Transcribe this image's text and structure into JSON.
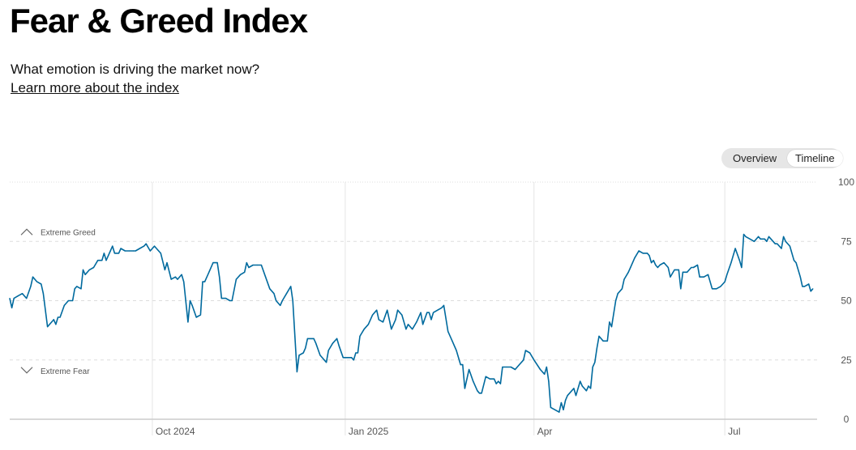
{
  "header": {
    "title": "Fear & Greed Index",
    "subtitle": "What emotion is driving the market now?",
    "learn_more": "Learn more about the index"
  },
  "toggle": {
    "overview_label": "Overview",
    "timeline_label": "Timeline",
    "selected": "Timeline"
  },
  "colors": {
    "line": "#006a9e",
    "grid": "#dddddd",
    "axis": "#cccccc"
  },
  "chart_data": {
    "type": "line",
    "title": "",
    "xlabel": "",
    "ylabel": "",
    "ylim": [
      0,
      100
    ],
    "yticks": [
      "0",
      "25",
      "50",
      "75",
      "100"
    ],
    "grid": true,
    "zone_labels": {
      "greed": "Extreme Greed",
      "fear": "Extreme Fear"
    },
    "x_tick_labels": [
      {
        "label": "Oct 2024",
        "date": "2024-10-01"
      },
      {
        "label": "Jan 2025",
        "date": "2025-01-01"
      },
      {
        "label": "Apr",
        "date": "2025-04-01"
      },
      {
        "label": "Jul",
        "date": "2025-07-01"
      }
    ],
    "xlim": [
      "2024-07-25",
      "2025-08-14"
    ],
    "series": [
      {
        "values": [
          [
            "2024-07-25",
            51
          ],
          [
            "2024-07-26",
            47
          ],
          [
            "2024-07-27",
            51
          ],
          [
            "2024-07-29",
            52
          ],
          [
            "2024-07-31",
            53
          ],
          [
            "2024-08-02",
            51
          ],
          [
            "2024-08-04",
            56
          ],
          [
            "2024-08-05",
            60
          ],
          [
            "2024-08-07",
            58
          ],
          [
            "2024-08-09",
            57
          ],
          [
            "2024-08-10",
            53
          ],
          [
            "2024-08-12",
            39
          ],
          [
            "2024-08-14",
            41
          ],
          [
            "2024-08-15",
            42
          ],
          [
            "2024-08-16",
            40
          ],
          [
            "2024-08-17",
            43
          ],
          [
            "2024-08-18",
            43
          ],
          [
            "2024-08-20",
            48
          ],
          [
            "2024-08-22",
            50
          ],
          [
            "2024-08-24",
            50
          ],
          [
            "2024-08-25",
            55
          ],
          [
            "2024-08-26",
            56
          ],
          [
            "2024-08-28",
            55
          ],
          [
            "2024-08-29",
            63
          ],
          [
            "2024-08-30",
            61
          ],
          [
            "2024-09-01",
            63
          ],
          [
            "2024-09-03",
            64
          ],
          [
            "2024-09-05",
            67
          ],
          [
            "2024-09-07",
            67
          ],
          [
            "2024-09-08",
            70
          ],
          [
            "2024-09-09",
            67
          ],
          [
            "2024-09-11",
            71
          ],
          [
            "2024-09-12",
            73
          ],
          [
            "2024-09-13",
            70
          ],
          [
            "2024-09-15",
            70
          ],
          [
            "2024-09-16",
            72
          ],
          [
            "2024-09-18",
            71
          ],
          [
            "2024-09-20",
            71
          ],
          [
            "2024-09-22",
            71
          ],
          [
            "2024-09-23",
            71
          ],
          [
            "2024-09-25",
            72
          ],
          [
            "2024-09-27",
            73
          ],
          [
            "2024-09-28",
            74
          ],
          [
            "2024-09-30",
            71
          ],
          [
            "2024-10-02",
            73
          ],
          [
            "2024-10-04",
            71
          ],
          [
            "2024-10-05",
            70
          ],
          [
            "2024-10-07",
            63
          ],
          [
            "2024-10-08",
            66
          ],
          [
            "2024-10-10",
            59
          ],
          [
            "2024-10-12",
            60
          ],
          [
            "2024-10-13",
            59
          ],
          [
            "2024-10-15",
            61
          ],
          [
            "2024-10-16",
            58
          ],
          [
            "2024-10-18",
            41
          ],
          [
            "2024-10-19",
            50
          ],
          [
            "2024-10-20",
            48
          ],
          [
            "2024-10-22",
            43
          ],
          [
            "2024-10-24",
            44
          ],
          [
            "2024-10-25",
            58
          ],
          [
            "2024-10-26",
            58
          ],
          [
            "2024-10-28",
            62
          ],
          [
            "2024-10-30",
            66
          ],
          [
            "2024-11-01",
            66
          ],
          [
            "2024-11-02",
            60
          ],
          [
            "2024-11-03",
            51
          ],
          [
            "2024-11-05",
            51
          ],
          [
            "2024-11-07",
            50
          ],
          [
            "2024-11-08",
            50
          ],
          [
            "2024-11-10",
            59
          ],
          [
            "2024-11-12",
            61
          ],
          [
            "2024-11-14",
            62
          ],
          [
            "2024-11-15",
            66
          ],
          [
            "2024-11-16",
            64
          ],
          [
            "2024-11-18",
            65
          ],
          [
            "2024-11-20",
            65
          ],
          [
            "2024-11-22",
            65
          ],
          [
            "2024-11-24",
            60
          ],
          [
            "2024-11-26",
            55
          ],
          [
            "2024-11-28",
            53
          ],
          [
            "2024-11-29",
            50
          ],
          [
            "2024-12-01",
            48
          ],
          [
            "2024-12-02",
            50
          ],
          [
            "2024-12-04",
            53
          ],
          [
            "2024-12-06",
            56
          ],
          [
            "2024-12-07",
            50
          ],
          [
            "2024-12-09",
            20
          ],
          [
            "2024-12-10",
            27
          ],
          [
            "2024-12-12",
            28
          ],
          [
            "2024-12-13",
            30
          ],
          [
            "2024-12-14",
            34
          ],
          [
            "2024-12-17",
            34
          ],
          [
            "2024-12-18",
            32
          ],
          [
            "2024-12-20",
            27
          ],
          [
            "2024-12-23",
            24
          ],
          [
            "2024-12-24",
            29
          ],
          [
            "2024-12-26",
            32
          ],
          [
            "2024-12-28",
            34
          ],
          [
            "2024-12-29",
            31
          ],
          [
            "2024-12-31",
            26
          ],
          [
            "2025-01-04",
            26
          ],
          [
            "2025-01-05",
            25
          ],
          [
            "2025-01-06",
            28
          ],
          [
            "2025-01-07",
            28
          ],
          [
            "2025-01-08",
            35
          ],
          [
            "2025-01-10",
            38
          ],
          [
            "2025-01-12",
            40
          ],
          [
            "2025-01-14",
            44
          ],
          [
            "2025-01-16",
            46
          ],
          [
            "2025-01-17",
            42
          ],
          [
            "2025-01-19",
            41
          ],
          [
            "2025-01-21",
            46
          ],
          [
            "2025-01-23",
            38
          ],
          [
            "2025-01-25",
            42
          ],
          [
            "2025-01-26",
            46
          ],
          [
            "2025-01-28",
            44
          ],
          [
            "2025-01-30",
            38
          ],
          [
            "2025-01-31",
            40
          ],
          [
            "2025-02-02",
            38
          ],
          [
            "2025-02-04",
            41
          ],
          [
            "2025-02-06",
            45
          ],
          [
            "2025-02-07",
            40
          ],
          [
            "2025-02-09",
            45
          ],
          [
            "2025-02-10",
            45
          ],
          [
            "2025-02-11",
            42
          ],
          [
            "2025-02-12",
            45
          ],
          [
            "2025-02-14",
            46
          ],
          [
            "2025-02-16",
            47
          ],
          [
            "2025-02-17",
            48
          ],
          [
            "2025-02-19",
            37
          ],
          [
            "2025-02-21",
            33
          ],
          [
            "2025-02-23",
            29
          ],
          [
            "2025-02-25",
            23
          ],
          [
            "2025-02-26",
            23
          ],
          [
            "2025-02-27",
            13
          ],
          [
            "2025-02-28",
            17
          ],
          [
            "2025-03-01",
            21
          ],
          [
            "2025-03-03",
            16
          ],
          [
            "2025-03-05",
            12
          ],
          [
            "2025-03-06",
            11
          ],
          [
            "2025-03-07",
            11
          ],
          [
            "2025-03-09",
            18
          ],
          [
            "2025-03-11",
            17
          ],
          [
            "2025-03-13",
            17
          ],
          [
            "2025-03-14",
            15
          ],
          [
            "2025-03-15",
            16
          ],
          [
            "2025-03-16",
            15
          ],
          [
            "2025-03-17",
            22
          ],
          [
            "2025-03-19",
            22
          ],
          [
            "2025-03-21",
            22
          ],
          [
            "2025-03-23",
            21
          ],
          [
            "2025-03-25",
            23
          ],
          [
            "2025-03-27",
            25
          ],
          [
            "2025-03-28",
            29
          ],
          [
            "2025-03-30",
            28
          ],
          [
            "2025-04-01",
            25
          ],
          [
            "2025-04-04",
            21
          ],
          [
            "2025-04-06",
            19
          ],
          [
            "2025-04-07",
            22
          ],
          [
            "2025-04-08",
            16
          ],
          [
            "2025-04-09",
            5
          ],
          [
            "2025-04-11",
            4
          ],
          [
            "2025-04-13",
            3
          ],
          [
            "2025-04-14",
            7
          ],
          [
            "2025-04-15",
            4
          ],
          [
            "2025-04-16",
            8
          ],
          [
            "2025-04-17",
            10
          ],
          [
            "2025-04-19",
            12
          ],
          [
            "2025-04-20",
            13
          ],
          [
            "2025-04-21",
            10
          ],
          [
            "2025-04-23",
            16
          ],
          [
            "2025-04-24",
            14
          ],
          [
            "2025-04-26",
            12
          ],
          [
            "2025-04-27",
            14
          ],
          [
            "2025-04-28",
            13
          ],
          [
            "2025-04-29",
            22
          ],
          [
            "2025-04-30",
            24
          ],
          [
            "2025-05-01",
            30
          ],
          [
            "2025-05-02",
            35
          ],
          [
            "2025-05-04",
            33
          ],
          [
            "2025-05-06",
            33
          ],
          [
            "2025-05-07",
            41
          ],
          [
            "2025-05-08",
            39
          ],
          [
            "2025-05-10",
            50
          ],
          [
            "2025-05-11",
            53
          ],
          [
            "2025-05-13",
            55
          ],
          [
            "2025-05-14",
            59
          ],
          [
            "2025-05-16",
            62
          ],
          [
            "2025-05-17",
            64
          ],
          [
            "2025-05-19",
            68
          ],
          [
            "2025-05-21",
            71
          ],
          [
            "2025-05-23",
            70
          ],
          [
            "2025-05-25",
            70
          ],
          [
            "2025-05-26",
            69
          ],
          [
            "2025-05-27",
            66
          ],
          [
            "2025-05-28",
            67
          ],
          [
            "2025-05-29",
            65
          ],
          [
            "2025-05-30",
            64
          ],
          [
            "2025-05-31",
            65
          ],
          [
            "2025-06-02",
            66
          ],
          [
            "2025-06-04",
            64
          ],
          [
            "2025-06-05",
            60
          ],
          [
            "2025-06-07",
            63
          ],
          [
            "2025-06-09",
            63
          ],
          [
            "2025-06-10",
            55
          ],
          [
            "2025-06-11",
            62
          ],
          [
            "2025-06-13",
            62
          ],
          [
            "2025-06-15",
            64
          ],
          [
            "2025-06-16",
            64
          ],
          [
            "2025-06-18",
            65
          ],
          [
            "2025-06-19",
            60
          ],
          [
            "2025-06-21",
            60
          ],
          [
            "2025-06-23",
            61
          ],
          [
            "2025-06-25",
            55
          ],
          [
            "2025-06-27",
            55
          ],
          [
            "2025-06-29",
            56
          ],
          [
            "2025-07-01",
            58
          ],
          [
            "2025-07-02",
            61
          ],
          [
            "2025-07-04",
            66
          ],
          [
            "2025-07-05",
            69
          ],
          [
            "2025-07-06",
            72
          ],
          [
            "2025-07-08",
            67
          ],
          [
            "2025-07-09",
            64
          ],
          [
            "2025-07-10",
            78
          ],
          [
            "2025-07-11",
            77
          ],
          [
            "2025-07-13",
            76
          ],
          [
            "2025-07-15",
            75
          ],
          [
            "2025-07-17",
            77
          ],
          [
            "2025-07-18",
            76
          ],
          [
            "2025-07-20",
            76
          ],
          [
            "2025-07-21",
            75
          ],
          [
            "2025-07-22",
            77
          ],
          [
            "2025-07-23",
            76
          ],
          [
            "2025-07-25",
            74
          ],
          [
            "2025-07-26",
            74
          ],
          [
            "2025-07-28",
            72
          ],
          [
            "2025-07-29",
            77
          ],
          [
            "2025-07-30",
            75
          ],
          [
            "2025-08-01",
            73
          ],
          [
            "2025-08-03",
            67
          ],
          [
            "2025-08-04",
            66
          ],
          [
            "2025-08-06",
            60
          ],
          [
            "2025-08-07",
            56
          ],
          [
            "2025-08-08",
            56
          ],
          [
            "2025-08-10",
            57
          ],
          [
            "2025-08-11",
            54
          ],
          [
            "2025-08-12",
            55
          ]
        ]
      }
    ]
  }
}
